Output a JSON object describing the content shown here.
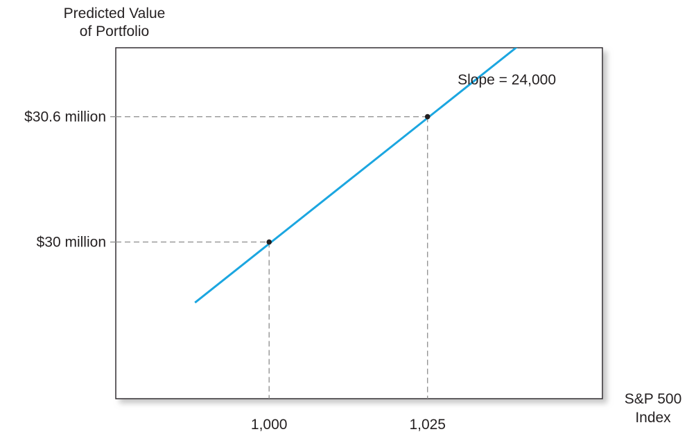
{
  "chart_data": {
    "type": "line",
    "ylabel_line1": "Predicted Value",
    "ylabel_line2": "of Portfolio",
    "xlabel_line1": "S&P 500",
    "xlabel_line2": "Index",
    "annotation": "Slope = 24,000",
    "line_color": "#1ba6e0",
    "x_tick_labels": [
      "1,000",
      "1,025"
    ],
    "y_tick_labels": [
      "$30 million",
      "$30.6 million"
    ],
    "xlim": [
      975.8,
      1052.6
    ],
    "ylim": [
      29.25,
      30.93
    ],
    "line": {
      "x": [
        988.3,
        1045.6
      ],
      "y": [
        29.71,
        31.09
      ]
    },
    "points": [
      {
        "x": 1000,
        "y": 30.0,
        "x_label": "1,000",
        "y_label": "$30 million"
      },
      {
        "x": 1025,
        "y": 30.6,
        "x_label": "1,025",
        "y_label": "$30.6 million"
      }
    ]
  }
}
